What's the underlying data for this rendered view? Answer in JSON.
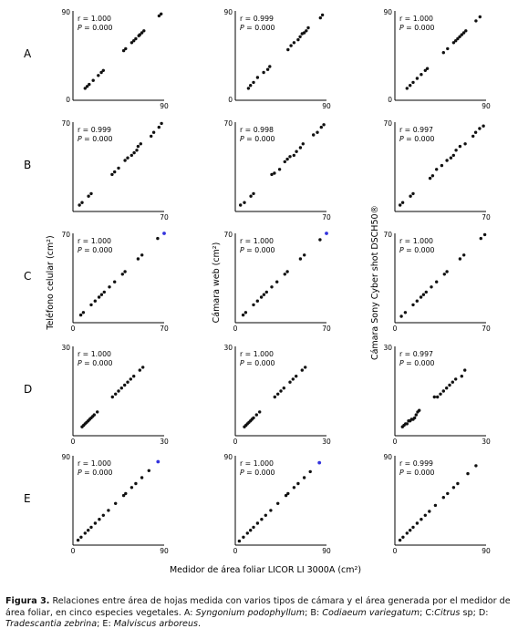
{
  "figure": {
    "rows": [
      {
        "label": "A",
        "xmax_label": "90",
        "ymax_label": "90",
        "ymin_label": "0",
        "xmin_label": ""
      },
      {
        "label": "B",
        "xmax_label": "70",
        "ymax_label": "70",
        "ymin_label": "",
        "xmin_label": ""
      },
      {
        "label": "C",
        "xmax_label": "70",
        "ymax_label": "70",
        "ymin_label": "",
        "xmin_label": "0"
      },
      {
        "label": "D",
        "xmax_label": "30",
        "ymax_label": "30",
        "ymin_label": "",
        "xmin_label": "0"
      },
      {
        "label": "E",
        "xmax_label": "90",
        "ymax_label": "90",
        "ymin_label": "",
        "xmin_label": "0"
      }
    ],
    "columns": [
      {
        "ylabel": "Teléfono celular (cm²)"
      },
      {
        "ylabel": "Cámara web (cm²)"
      },
      {
        "ylabel": "Cámara Sony Cyber shot DSCH50®"
      }
    ],
    "xlabel": "Medidor de área foliar LICOR LI 3000A (cm²)"
  },
  "chart_data": [
    {
      "type": "scatter",
      "row": "A",
      "column": "Teléfono celular",
      "r": "r = 1.000",
      "p": "P = 0.000",
      "xlim": [
        0,
        90
      ],
      "ylim": [
        0,
        90
      ],
      "x": [
        12,
        14,
        16,
        20,
        25,
        28,
        30,
        50,
        52,
        58,
        60,
        62,
        65,
        66,
        68,
        70,
        85,
        87
      ],
      "y": [
        12,
        14,
        16,
        20,
        25,
        28,
        30,
        50,
        52,
        58,
        60,
        62,
        65,
        66,
        68,
        70,
        85,
        87
      ]
    },
    {
      "type": "scatter",
      "row": "A",
      "column": "Cámara web",
      "r": "r = 0.999",
      "p": "P = 0.000",
      "xlim": [
        0,
        90
      ],
      "ylim": [
        0,
        90
      ],
      "x": [
        13,
        15,
        18,
        22,
        28,
        32,
        34,
        52,
        55,
        58,
        62,
        64,
        66,
        68,
        70,
        72,
        84,
        86
      ],
      "y": [
        12,
        15,
        18,
        23,
        28,
        31,
        34,
        51,
        55,
        58,
        61,
        64,
        67,
        68,
        70,
        73,
        83,
        86
      ]
    },
    {
      "type": "scatter",
      "row": "A",
      "column": "Cámara Sony",
      "r": "r = 1.000",
      "p": "P = 0.000",
      "xlim": [
        0,
        90
      ],
      "ylim": [
        0,
        90
      ],
      "x": [
        12,
        15,
        18,
        22,
        26,
        30,
        32,
        48,
        52,
        58,
        60,
        62,
        64,
        66,
        68,
        70,
        80,
        84
      ],
      "y": [
        12,
        15,
        18,
        22,
        26,
        30,
        32,
        48,
        52,
        58,
        60,
        62,
        64,
        66,
        68,
        70,
        80,
        84
      ]
    },
    {
      "type": "scatter",
      "row": "B",
      "column": "Teléfono celular",
      "r": "r = 0.999",
      "p": "P = 0.000",
      "xlim": [
        0,
        70
      ],
      "ylim": [
        0,
        70
      ],
      "x": [
        5,
        7,
        12,
        14,
        30,
        32,
        35,
        40,
        42,
        45,
        47,
        49,
        50,
        52,
        60,
        62,
        66,
        68
      ],
      "y": [
        5,
        7,
        12,
        14,
        29,
        31,
        34,
        40,
        42,
        44,
        46,
        48,
        51,
        53,
        59,
        62,
        66,
        69
      ]
    },
    {
      "type": "scatter",
      "row": "B",
      "column": "Cámara web",
      "r": "r = 0.998",
      "p": "P = 0.000",
      "xlim": [
        0,
        70
      ],
      "ylim": [
        0,
        70
      ],
      "x": [
        4,
        7,
        12,
        14,
        28,
        30,
        34,
        38,
        40,
        42,
        45,
        47,
        50,
        52,
        60,
        63,
        66,
        68
      ],
      "y": [
        5,
        7,
        12,
        14,
        29,
        30,
        33,
        39,
        41,
        43,
        44,
        47,
        50,
        53,
        60,
        62,
        66,
        68
      ]
    },
    {
      "type": "scatter",
      "row": "B",
      "column": "Cámara Sony",
      "r": "r = 0.997",
      "p": "P = 0.000",
      "xlim": [
        0,
        70
      ],
      "ylim": [
        0,
        70
      ],
      "x": [
        4,
        6,
        12,
        14,
        27,
        29,
        32,
        36,
        40,
        43,
        45,
        47,
        50,
        54,
        60,
        62,
        65,
        68
      ],
      "y": [
        5,
        7,
        12,
        14,
        26,
        28,
        33,
        36,
        40,
        42,
        44,
        48,
        51,
        53,
        59,
        62,
        65,
        67
      ]
    },
    {
      "type": "scatter",
      "row": "C",
      "column": "Teléfono celular",
      "r": "r = 1.000",
      "p": "P = 0.000",
      "xlim": [
        0,
        70
      ],
      "ylim": [
        0,
        70
      ],
      "x": [
        6,
        8,
        14,
        17,
        20,
        22,
        24,
        28,
        32,
        38,
        40,
        50,
        53,
        65
      ],
      "y": [
        6,
        8,
        14,
        17,
        20,
        22,
        24,
        28,
        32,
        38,
        40,
        50,
        53,
        66
      ],
      "highlight": [
        {
          "x": 70,
          "y": 70,
          "color": "#3333dd"
        }
      ]
    },
    {
      "type": "scatter",
      "row": "C",
      "column": "Cámara web",
      "r": "r = 1.000",
      "p": "P = 0.000",
      "xlim": [
        0,
        70
      ],
      "ylim": [
        0,
        70
      ],
      "x": [
        6,
        8,
        14,
        17,
        20,
        22,
        24,
        28,
        32,
        38,
        40,
        50,
        53,
        65
      ],
      "y": [
        6,
        8,
        14,
        17,
        20,
        22,
        24,
        28,
        32,
        38,
        40,
        50,
        53,
        65
      ],
      "highlight": [
        {
          "x": 70,
          "y": 70,
          "color": "#3333dd"
        }
      ]
    },
    {
      "type": "scatter",
      "row": "C",
      "column": "Cámara Sony",
      "r": "r = 1.000",
      "p": "P = 0.000",
      "xlim": [
        0,
        70
      ],
      "ylim": [
        0,
        70
      ],
      "x": [
        5,
        8,
        14,
        17,
        20,
        22,
        24,
        28,
        32,
        38,
        40,
        50,
        53,
        66,
        69
      ],
      "y": [
        5,
        8,
        14,
        17,
        20,
        22,
        24,
        28,
        32,
        38,
        40,
        50,
        53,
        66,
        69
      ]
    },
    {
      "type": "scatter",
      "row": "D",
      "column": "Teléfono celular",
      "r": "r = 1.000",
      "p": "P = 0.000",
      "xlim": [
        0,
        30
      ],
      "ylim": [
        0,
        30
      ],
      "x": [
        3,
        3.5,
        4,
        4.5,
        5,
        5.5,
        6,
        6.5,
        7,
        8,
        13,
        14,
        15,
        16,
        17,
        18,
        19,
        20,
        22,
        23
      ],
      "y": [
        3,
        3.5,
        4,
        4.5,
        5,
        5.5,
        6,
        6.5,
        7,
        8,
        13,
        14,
        15,
        16,
        17,
        18,
        19,
        20,
        22,
        23
      ]
    },
    {
      "type": "scatter",
      "row": "D",
      "column": "Cámara web",
      "r": "r = 1.000",
      "p": "P = 0.000",
      "xlim": [
        0,
        30
      ],
      "ylim": [
        0,
        30
      ],
      "x": [
        3,
        3.5,
        4,
        4.5,
        5,
        5.5,
        6,
        7,
        8,
        13,
        14,
        15,
        16,
        18,
        19,
        20,
        22,
        23
      ],
      "y": [
        3,
        3.5,
        4,
        4.5,
        5,
        5.5,
        6,
        7,
        8,
        13,
        14,
        15,
        16,
        18,
        19,
        20,
        22,
        23
      ]
    },
    {
      "type": "scatter",
      "row": "D",
      "column": "Cámara Sony",
      "r": "r = 0.997",
      "p": "P = 0.000",
      "xlim": [
        0,
        30
      ],
      "ylim": [
        0,
        30
      ],
      "x": [
        2.5,
        3,
        3.5,
        4,
        4.5,
        5,
        5.5,
        6,
        6.5,
        7,
        7.5,
        8,
        13,
        14,
        15,
        16,
        17,
        18,
        19,
        20,
        22,
        23
      ],
      "y": [
        3,
        3.5,
        4,
        4,
        5,
        5,
        5.5,
        5.5,
        6,
        7,
        8,
        8.5,
        13,
        13,
        14,
        15,
        16,
        17,
        18,
        19,
        20,
        22
      ]
    },
    {
      "type": "scatter",
      "row": "E",
      "column": "Teléfono celular",
      "r": "r = 1.000",
      "p": "P = 0.000",
      "xlim": [
        0,
        90
      ],
      "ylim": [
        0,
        90
      ],
      "x": [
        5,
        8,
        12,
        15,
        18,
        22,
        26,
        30,
        35,
        42,
        50,
        52,
        58,
        62,
        68,
        75
      ],
      "y": [
        5,
        8,
        12,
        15,
        18,
        22,
        26,
        30,
        35,
        42,
        50,
        52,
        58,
        62,
        68,
        75
      ],
      "highlight": [
        {
          "x": 84,
          "y": 84,
          "color": "#3333dd"
        }
      ]
    },
    {
      "type": "scatter",
      "row": "E",
      "column": "Cámara web",
      "r": "r = 1.000",
      "p": "P = 0.000",
      "xlim": [
        0,
        90
      ],
      "ylim": [
        0,
        90
      ],
      "x": [
        4,
        8,
        12,
        15,
        18,
        22,
        26,
        30,
        35,
        42,
        50,
        52,
        58,
        62,
        68,
        74
      ],
      "y": [
        4,
        8,
        12,
        15,
        18,
        22,
        26,
        30,
        35,
        42,
        50,
        52,
        58,
        62,
        68,
        74
      ],
      "highlight": [
        {
          "x": 83,
          "y": 83,
          "color": "#3333dd"
        }
      ]
    },
    {
      "type": "scatter",
      "row": "E",
      "column": "Cámara Sony",
      "r": "r = 0.999",
      "p": "P = 0.000",
      "xlim": [
        0,
        90
      ],
      "ylim": [
        0,
        90
      ],
      "x": [
        5,
        8,
        12,
        15,
        18,
        22,
        26,
        30,
        34,
        40,
        48,
        52,
        58,
        62,
        72,
        80
      ],
      "y": [
        5,
        8,
        12,
        15,
        18,
        22,
        26,
        30,
        34,
        40,
        48,
        52,
        58,
        62,
        72,
        80
      ]
    }
  ],
  "caption": {
    "label": "Figura 3.",
    "text1": " Relaciones entre área de hojas medida con varios tipos de cámara y el área generada por el medidor de área foliar, en cinco especies vegetales. A: ",
    "sp_a": "Syngonium podophyllum",
    "text2": "; B: ",
    "sp_b": "Codiaeum variegatum",
    "text3": "; C:",
    "sp_c": "Citrus",
    "text4": " sp; D: ",
    "sp_d": "Tradescantia zebrina",
    "text5": "; E: ",
    "sp_e": "Malviscus arboreus",
    "text6": "."
  }
}
